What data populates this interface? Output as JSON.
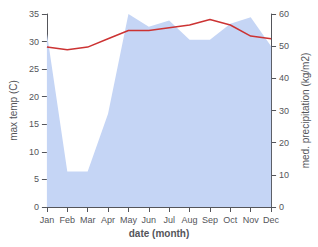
{
  "chart_data": {
    "type": "line",
    "categories": [
      "Jan",
      "Feb",
      "Mar",
      "Apr",
      "May",
      "Jun",
      "Jul",
      "Aug",
      "Sep",
      "Oct",
      "Nov",
      "Dec"
    ],
    "xlabel": "date (month)",
    "ylabel": "max temp (C)",
    "y2label": "med. precipitation (kg/m2)",
    "series": [
      {
        "type": "area",
        "color": "#c5d5f5",
        "axis": "y2",
        "values": [
          54,
          11,
          11,
          29,
          60,
          56,
          58,
          52,
          52,
          57,
          59,
          50
        ]
      },
      {
        "type": "line",
        "color": "#cc3333",
        "values": [
          29.0,
          28.5,
          29.0,
          30.5,
          32.0,
          32.0,
          32.5,
          33.0,
          34.0,
          33.0,
          31.0,
          30.5
        ]
      }
    ],
    "ylim": [
      0,
      35
    ],
    "yticks": [
      0,
      5,
      10,
      15,
      20,
      25,
      30,
      35
    ],
    "y2lim": [
      0,
      60
    ],
    "y2ticks": [
      0,
      10,
      20,
      30,
      40,
      50,
      60
    ],
    "grid": false
  }
}
